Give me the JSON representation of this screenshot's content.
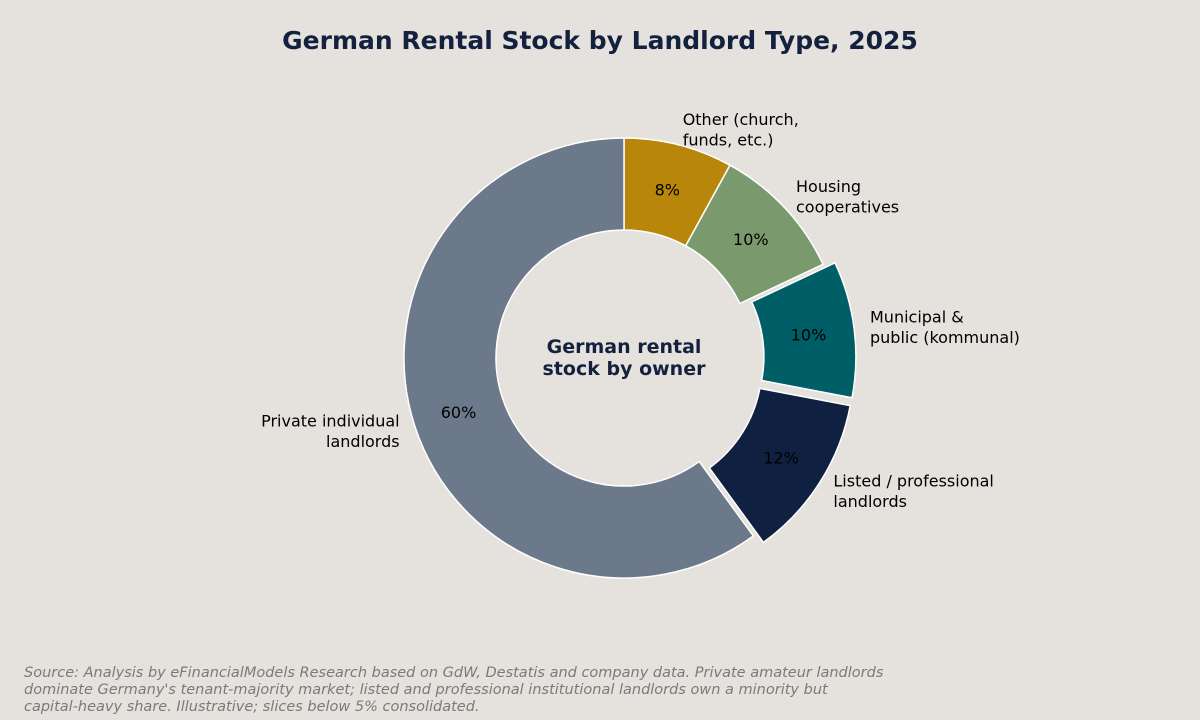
{
  "chart_data": {
    "type": "pie",
    "variant": "donut",
    "title": "German Rental Stock by Landlord Type, 2025",
    "center_label": [
      "German rental",
      "stock by owner"
    ],
    "unit": "%",
    "start_angle_deg": 90,
    "direction": "clockwise",
    "slices": [
      {
        "label": [
          "Other (church,",
          "funds, etc.)"
        ],
        "value": 8,
        "pct_label": "8%",
        "color": "#b8860b",
        "exploded": false
      },
      {
        "label": [
          "Housing",
          "cooperatives"
        ],
        "value": 10,
        "pct_label": "10%",
        "color": "#7a9a6e",
        "exploded": false
      },
      {
        "label": [
          "Municipal &",
          "public (kommunal)"
        ],
        "value": 10,
        "pct_label": "10%",
        "color": "#005f66",
        "exploded": true
      },
      {
        "label": [
          "Listed / professional",
          "landlords"
        ],
        "value": 12,
        "pct_label": "12%",
        "color": "#0f2040",
        "exploded": true
      },
      {
        "label": [
          "Private individual",
          "landlords"
        ],
        "value": 60,
        "pct_label": "60%",
        "color": "#6b798b",
        "exploded": false
      }
    ]
  },
  "source_note": "Source: Analysis by eFinancialModels Research based on GdW, Destatis and company data. Private amateur landlords dominate Germany's tenant-majority market; listed and professional institutional landlords own a minority but capital-heavy share. Illustrative; slices below 5% consolidated."
}
